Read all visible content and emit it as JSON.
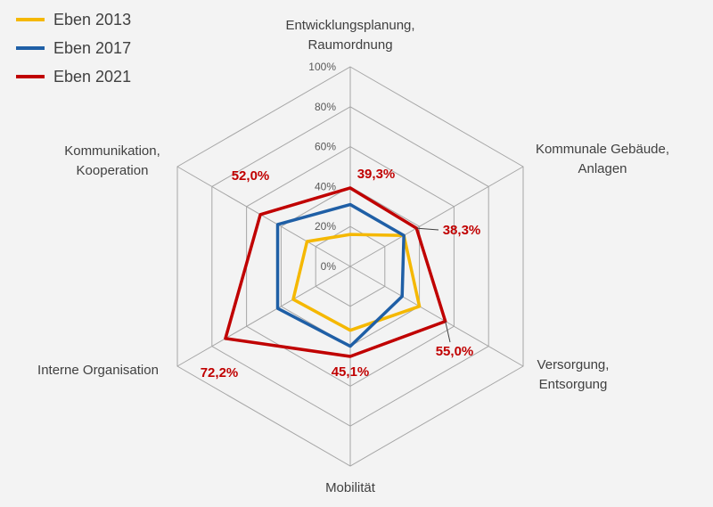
{
  "chart_data": {
    "type": "radar",
    "title": "",
    "axes": [
      [
        "Entwicklungsplanung,",
        "Raumordnung"
      ],
      [
        "Kommunale Gebäude,",
        "Anlagen"
      ],
      [
        "Versorgung,",
        "Entsorgung"
      ],
      [
        "Mobilität"
      ],
      [
        "Interne Organisation"
      ],
      [
        "Kommunikation,",
        "Kooperation"
      ]
    ],
    "rlim": [
      0,
      100
    ],
    "ticks": [
      "0%",
      "20%",
      "40%",
      "60%",
      "80%",
      "100%"
    ],
    "grid": true,
    "legend_position": "top-left",
    "series": [
      {
        "name": "Eben 2013",
        "color": "#F5B800",
        "values": [
          16,
          31,
          40,
          32,
          33,
          25
        ]
      },
      {
        "name": "Eben 2017",
        "color": "#1F5FA6",
        "values": [
          31,
          31,
          30,
          40,
          42,
          42
        ]
      },
      {
        "name": "Eben 2021",
        "color": "#C00000",
        "values": [
          39.3,
          38.3,
          55.0,
          45.1,
          72.2,
          52.0
        ]
      }
    ],
    "data_labels": [
      "39,3%",
      "38,3%",
      "55,0%",
      "45,1%",
      "72,2%",
      "52,0%"
    ],
    "data_label_color": "#C00000"
  }
}
